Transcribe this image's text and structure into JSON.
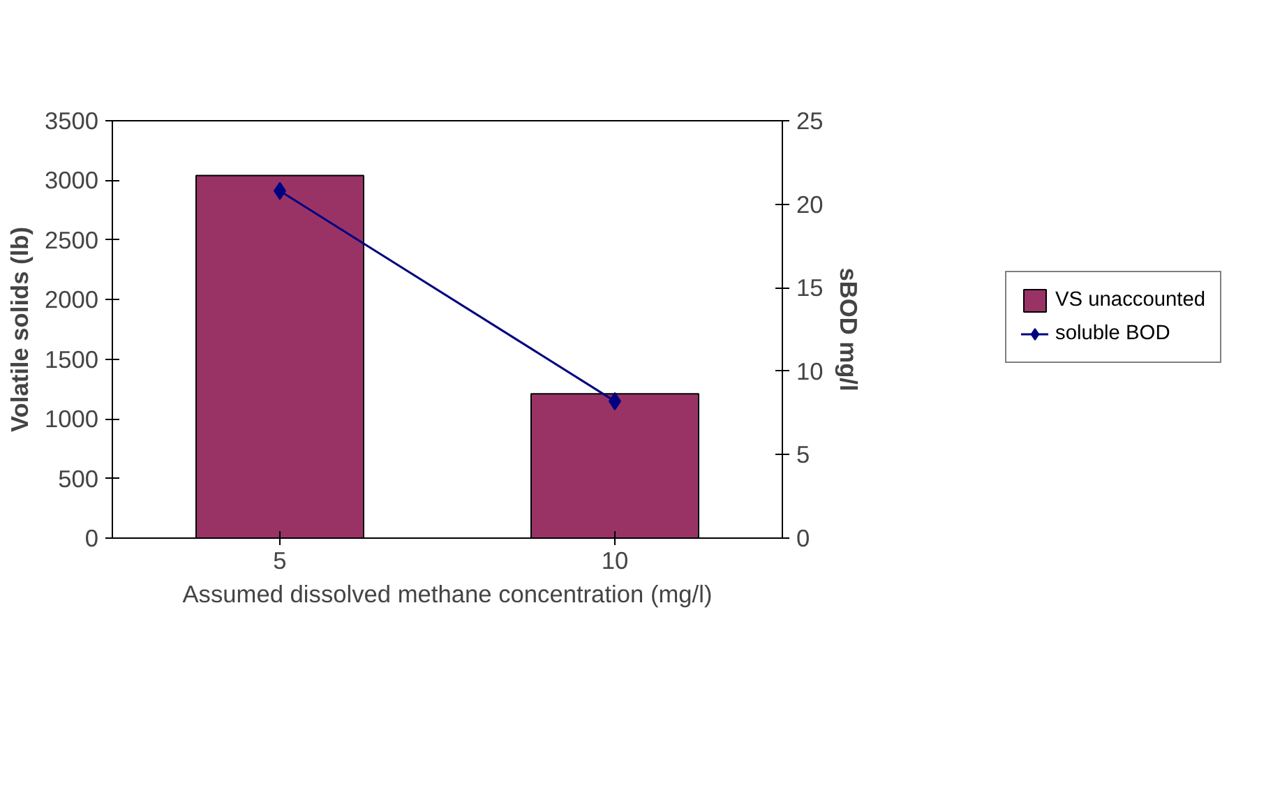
{
  "chart_data": {
    "type": "bar",
    "categories": [
      "5",
      "10"
    ],
    "xlabel": "Assumed dissolved methane concentration (mg/l)",
    "ylabel": "Volatile solids (lb)",
    "y2label": "sBOD mg/l",
    "series": [
      {
        "name": "VS unaccounted",
        "color": "#993366",
        "values": [
          3040,
          1210
        ]
      },
      {
        "name": "soluble BOD",
        "type": "line",
        "color": "#000080",
        "values": [
          20.8,
          8.2
        ],
        "axis": "y2",
        "marker": "diamond"
      }
    ],
    "ylim": [
      0,
      3500
    ],
    "yticks": [
      0,
      500,
      1000,
      1500,
      2000,
      2500,
      3000,
      3500
    ],
    "y2lim": [
      0,
      25
    ],
    "y2ticks": [
      0,
      5,
      10,
      15,
      20,
      25
    ],
    "grid": false,
    "legend": "right"
  }
}
